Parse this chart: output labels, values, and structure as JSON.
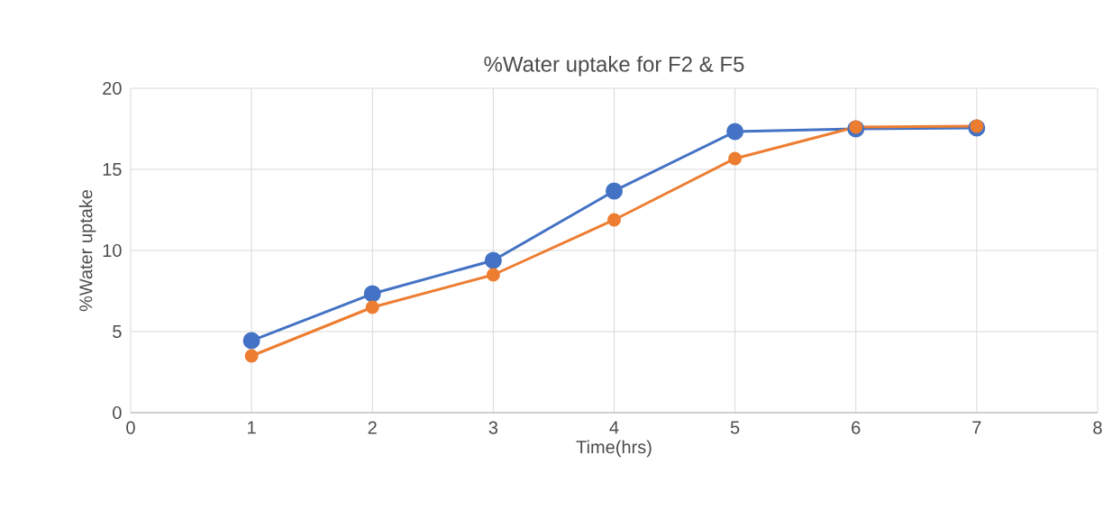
{
  "chart_data": {
    "type": "line",
    "title": "%Water uptake for F2 & F5",
    "xlabel": "Time(hrs)",
    "ylabel": "%Water uptake",
    "x": [
      1,
      2,
      3,
      4,
      5,
      6,
      7
    ],
    "series": [
      {
        "color": "#4472c4",
        "values": [
          4.44,
          7.33,
          9.39,
          13.67,
          17.33,
          17.5,
          17.56
        ]
      },
      {
        "color": "#ed7d31",
        "values": [
          3.5,
          6.5,
          8.5,
          11.89,
          15.67,
          17.61,
          17.67
        ]
      }
    ],
    "xlim": [
      0,
      8
    ],
    "xticks": [
      0,
      1,
      2,
      3,
      4,
      5,
      6,
      7,
      8
    ],
    "ylim": [
      0,
      20
    ],
    "yticks": [
      0,
      5,
      10,
      15,
      20
    ],
    "grid": true,
    "marker": "circle",
    "line_style": "solid"
  }
}
